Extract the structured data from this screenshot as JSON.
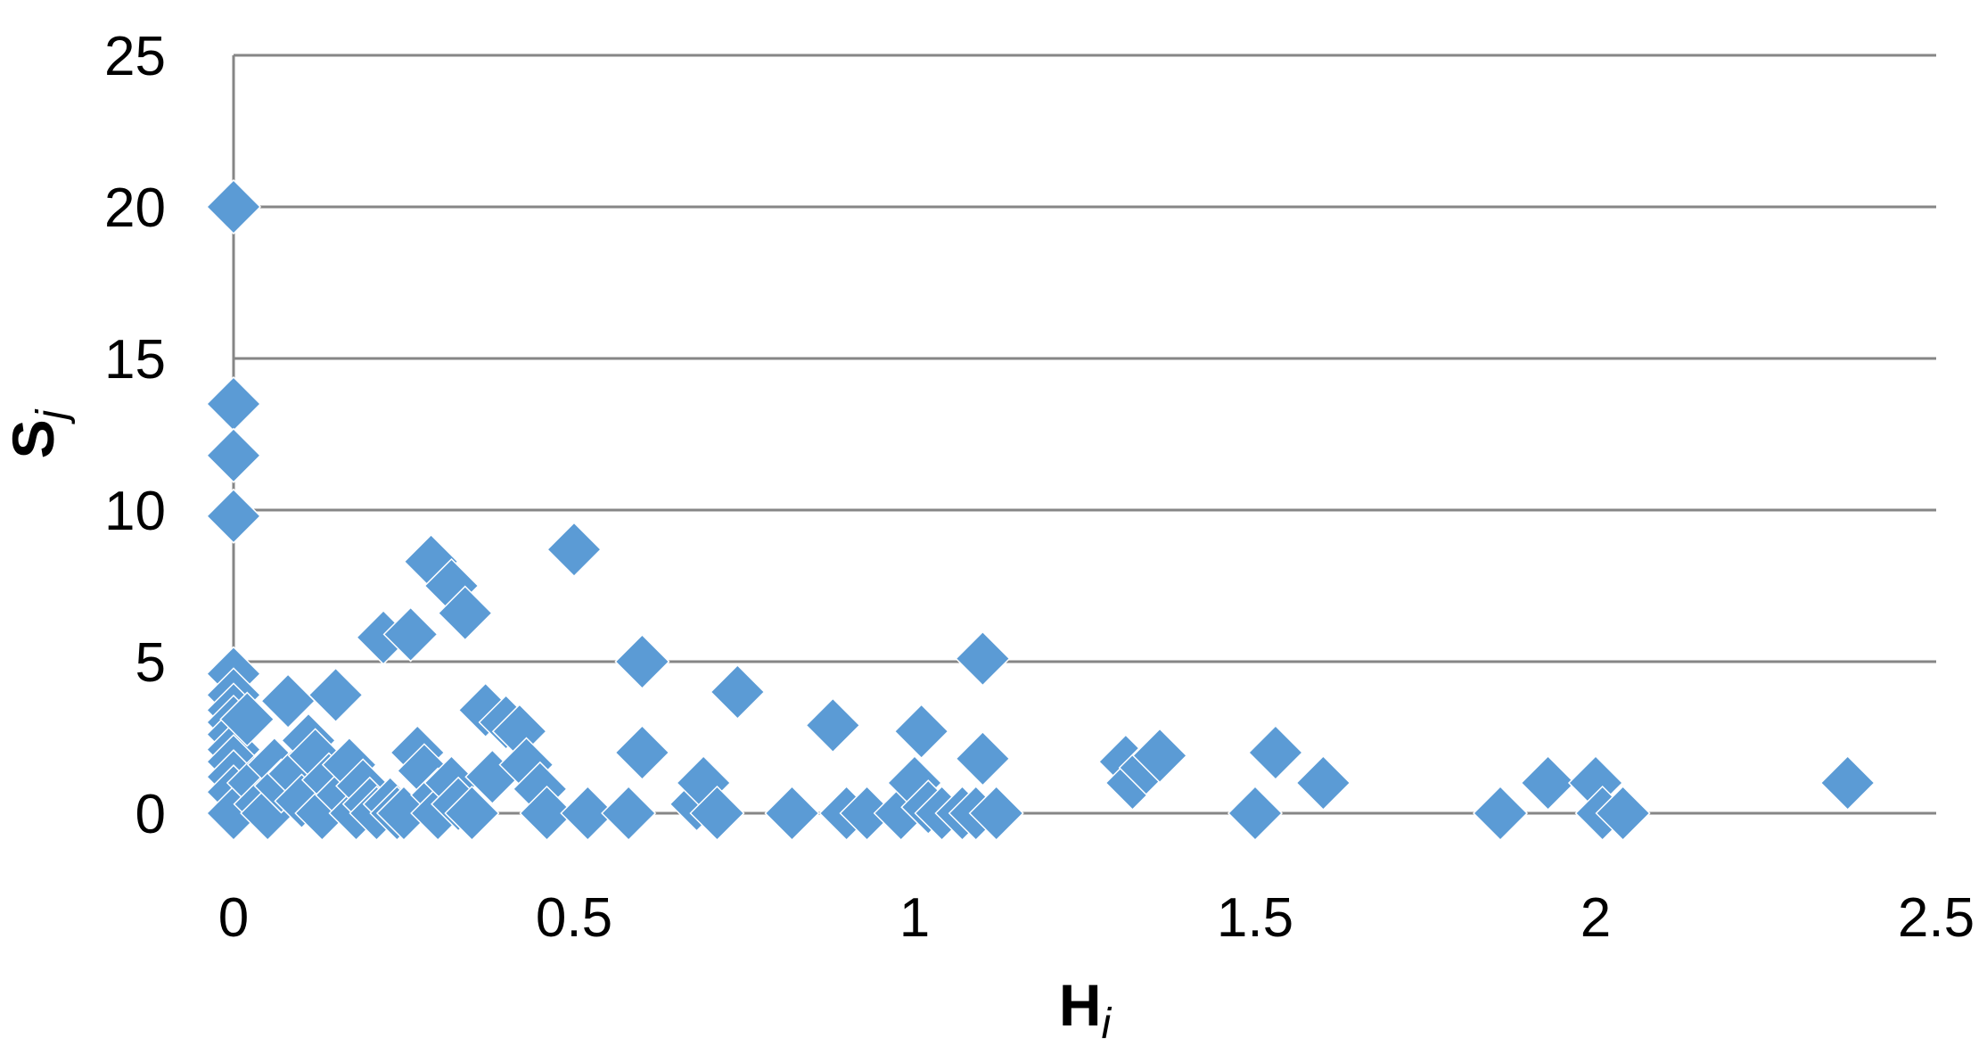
{
  "chart_data": {
    "type": "scatter",
    "title": "",
    "xlabel": {
      "main": "H",
      "sub": "i"
    },
    "ylabel": {
      "main": "S",
      "sub": "j"
    },
    "xlim": [
      0,
      2.5
    ],
    "ylim": [
      0,
      25
    ],
    "xticks": [
      "0",
      "0.5",
      "1",
      "1.5",
      "2",
      "2.5"
    ],
    "yticks": [
      "0",
      "5",
      "10",
      "15",
      "20",
      "25"
    ],
    "grid": "horizontal",
    "legend": "none",
    "marker": "diamond",
    "marker_color": "#5B9BD5",
    "series": [
      {
        "points": [
          [
            0,
            20
          ],
          [
            0,
            13.5
          ],
          [
            0,
            11.8
          ],
          [
            0,
            9.8
          ],
          [
            0,
            4.6
          ],
          [
            0,
            3.9
          ],
          [
            0,
            3.4
          ],
          [
            0,
            3.0
          ],
          [
            0,
            2.6
          ],
          [
            0,
            2.1
          ],
          [
            0,
            1.7
          ],
          [
            0,
            1.2
          ],
          [
            0,
            0.7
          ],
          [
            0,
            0
          ],
          [
            0.02,
            3.1
          ],
          [
            0.03,
            1.0
          ],
          [
            0.04,
            0.3
          ],
          [
            0.05,
            0
          ],
          [
            0.06,
            1.6
          ],
          [
            0.07,
            0.9
          ],
          [
            0.08,
            3.7
          ],
          [
            0.09,
            1.3
          ],
          [
            0.1,
            0.4
          ],
          [
            0.11,
            2.4
          ],
          [
            0.12,
            1.9
          ],
          [
            0.13,
            0
          ],
          [
            0.14,
            1.1
          ],
          [
            0.15,
            3.9
          ],
          [
            0.16,
            0.6
          ],
          [
            0.17,
            1.6
          ],
          [
            0.18,
            0
          ],
          [
            0.19,
            0.9
          ],
          [
            0.2,
            0.3
          ],
          [
            0.21,
            0
          ],
          [
            0.22,
            5.8
          ],
          [
            0.23,
            0.3
          ],
          [
            0.24,
            0
          ],
          [
            0.25,
            0
          ],
          [
            0.26,
            5.9
          ],
          [
            0.27,
            2.0
          ],
          [
            0.28,
            1.4
          ],
          [
            0.29,
            8.3
          ],
          [
            0.3,
            0.6
          ],
          [
            0.3,
            0
          ],
          [
            0.32,
            7.5
          ],
          [
            0.32,
            1.0
          ],
          [
            0.33,
            0.3
          ],
          [
            0.34,
            6.6
          ],
          [
            0.35,
            0
          ],
          [
            0.37,
            3.4
          ],
          [
            0.38,
            1.2
          ],
          [
            0.4,
            3.0
          ],
          [
            0.42,
            2.7
          ],
          [
            0.43,
            1.6
          ],
          [
            0.45,
            0.8
          ],
          [
            0.46,
            0
          ],
          [
            0.5,
            8.7
          ],
          [
            0.52,
            0
          ],
          [
            0.58,
            0
          ],
          [
            0.6,
            5.0
          ],
          [
            0.6,
            2.0
          ],
          [
            0.68,
            0.3
          ],
          [
            0.69,
            1.0
          ],
          [
            0.71,
            0
          ],
          [
            0.74,
            4.0
          ],
          [
            0.82,
            0
          ],
          [
            0.88,
            2.9
          ],
          [
            0.9,
            0
          ],
          [
            0.93,
            0
          ],
          [
            0.98,
            0
          ],
          [
            1.0,
            1.0
          ],
          [
            1.01,
            2.7
          ],
          [
            1.02,
            0.2
          ],
          [
            1.04,
            0
          ],
          [
            1.07,
            0
          ],
          [
            1.09,
            0
          ],
          [
            1.1,
            5.1
          ],
          [
            1.1,
            1.8
          ],
          [
            1.12,
            0
          ],
          [
            1.31,
            1.7
          ],
          [
            1.32,
            1.0
          ],
          [
            1.34,
            1.5
          ],
          [
            1.36,
            1.9
          ],
          [
            1.5,
            0
          ],
          [
            1.53,
            2.0
          ],
          [
            1.6,
            1.0
          ],
          [
            1.86,
            0
          ],
          [
            1.93,
            1.0
          ],
          [
            2.0,
            1.0
          ],
          [
            2.01,
            0
          ],
          [
            2.04,
            0
          ],
          [
            2.37,
            1.0
          ]
        ]
      }
    ]
  }
}
